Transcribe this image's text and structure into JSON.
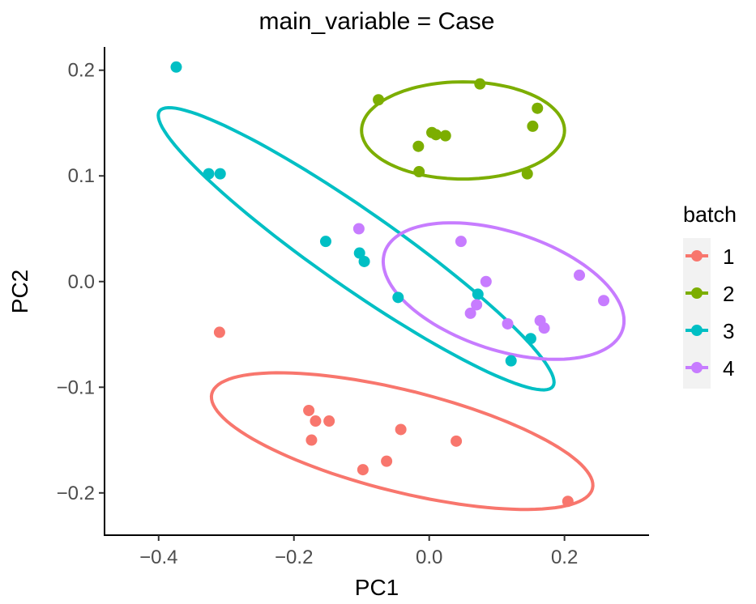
{
  "chart_data": {
    "type": "scatter",
    "title": "main_variable = Case",
    "xlabel": "PC1",
    "ylabel": "PC2",
    "xlim": [
      -0.48,
      0.325
    ],
    "ylim": [
      -0.24,
      0.222
    ],
    "xticks": [
      -0.4,
      -0.2,
      0.0,
      0.2
    ],
    "xtick_labels": [
      "−0.4",
      "−0.2",
      "0.0",
      "0.2"
    ],
    "yticks": [
      -0.2,
      -0.1,
      0.0,
      0.1,
      0.2
    ],
    "ytick_labels": [
      "−0.2",
      "−0.1",
      "0.0",
      "0.1",
      "0.2"
    ],
    "grid": false,
    "legend": {
      "title": "batch",
      "placement": "right"
    },
    "series": [
      {
        "name": "1",
        "color": "#F8766D",
        "points": [
          [
            -0.31,
            -0.048
          ],
          [
            -0.178,
            -0.122
          ],
          [
            -0.168,
            -0.132
          ],
          [
            -0.148,
            -0.132
          ],
          [
            -0.174,
            -0.15
          ],
          [
            -0.042,
            -0.14
          ],
          [
            0.04,
            -0.151
          ],
          [
            -0.063,
            -0.17
          ],
          [
            -0.098,
            -0.178
          ],
          [
            0.205,
            -0.208
          ]
        ],
        "ellipse": {
          "cx": -0.04,
          "cy": -0.151,
          "rx": 0.29,
          "ry": 0.048,
          "angle_deg": -14
        }
      },
      {
        "name": "2",
        "color": "#7CAE00",
        "points": [
          [
            -0.075,
            0.172
          ],
          [
            0.075,
            0.187
          ],
          [
            0.16,
            0.164
          ],
          [
            0.004,
            0.141
          ],
          [
            0.01,
            0.139
          ],
          [
            0.024,
            0.138
          ],
          [
            0.153,
            0.147
          ],
          [
            -0.016,
            0.128
          ],
          [
            -0.015,
            0.104
          ],
          [
            0.145,
            0.102
          ]
        ],
        "ellipse": {
          "cx": 0.05,
          "cy": 0.143,
          "rx": 0.15,
          "ry": 0.046,
          "angle_deg": 0
        }
      },
      {
        "name": "3",
        "color": "#00BFC4",
        "points": [
          [
            -0.374,
            0.203
          ],
          [
            -0.326,
            0.102
          ],
          [
            -0.309,
            0.102
          ],
          [
            -0.153,
            0.038
          ],
          [
            -0.103,
            0.027
          ],
          [
            -0.096,
            0.019
          ],
          [
            -0.046,
            -0.015
          ],
          [
            0.072,
            -0.012
          ],
          [
            0.15,
            -0.054
          ],
          [
            0.121,
            -0.075
          ]
        ],
        "ellipse": {
          "cx": -0.108,
          "cy": 0.031,
          "rx": 0.355,
          "ry": 0.036,
          "angle_deg": -35
        }
      },
      {
        "name": "4",
        "color": "#C77CFF",
        "points": [
          [
            -0.104,
            0.05
          ],
          [
            0.047,
            0.038
          ],
          [
            0.084,
            0.0
          ],
          [
            0.222,
            0.006
          ],
          [
            0.07,
            -0.022
          ],
          [
            0.061,
            -0.03
          ],
          [
            0.164,
            -0.037
          ],
          [
            0.17,
            -0.044
          ],
          [
            0.116,
            -0.04
          ],
          [
            0.258,
            -0.018
          ]
        ],
        "ellipse": {
          "cx": 0.11,
          "cy": -0.009,
          "rx": 0.185,
          "ry": 0.056,
          "angle_deg": -18
        }
      }
    ]
  }
}
